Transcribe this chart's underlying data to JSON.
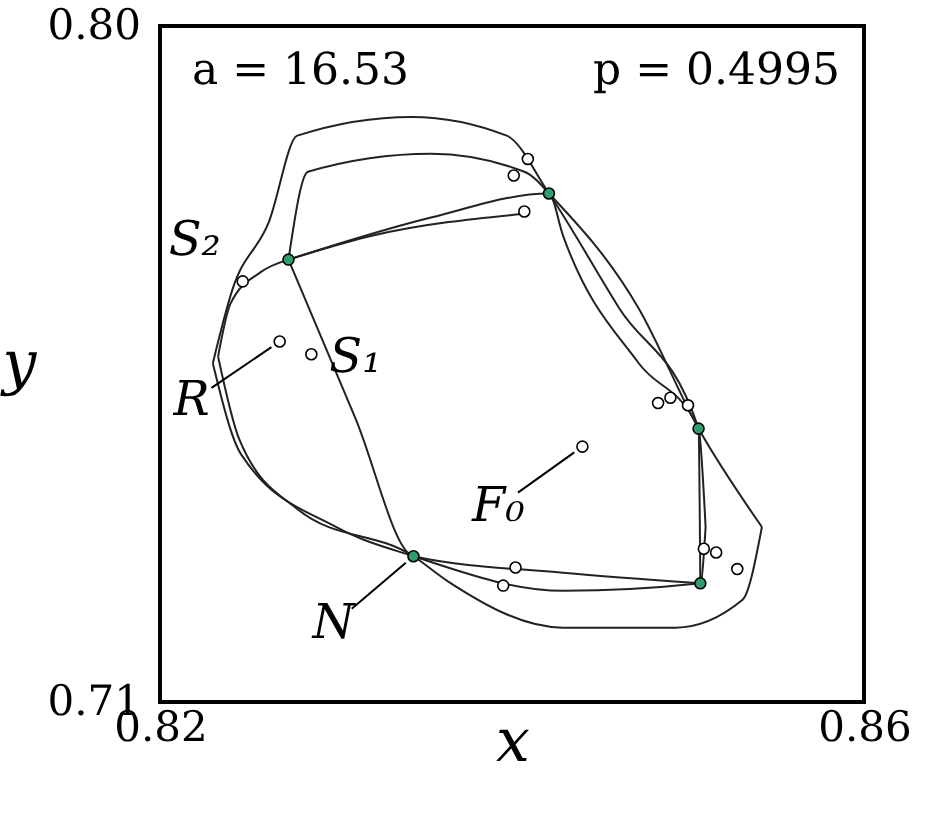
{
  "chart_data": {
    "type": "line",
    "xlabel": "x",
    "ylabel": "y",
    "xlim": [
      0.82,
      0.86
    ],
    "ylim": [
      0.71,
      0.8
    ],
    "xticks": [
      0.82,
      0.86
    ],
    "yticks": [
      0.71,
      {
        "value": 0.8,
        "label": "0.80"
      }
    ],
    "grid": false,
    "marker": "none",
    "line_style": "solid",
    "series": [
      {
        "color": "#222222",
        "x": [
          0.823,
          0.8241,
          0.8262,
          0.8278,
          0.8343,
          0.8397,
          0.8421,
          0.8461,
          0.8506,
          0.851
        ],
        "values": [
          0.7551,
          0.7648,
          0.774,
          0.7854,
          0.7879,
          0.7854,
          0.7777,
          0.7624,
          0.7464,
          0.7333
        ]
      },
      {
        "color": "#222222",
        "x": [
          0.823,
          0.8246,
          0.83,
          0.8344,
          0.8429,
          0.8507,
          0.851
        ],
        "values": [
          0.7551,
          0.743,
          0.7333,
          0.7294,
          0.7248,
          0.7258,
          0.7333
        ]
      },
      {
        "color": "#222222",
        "x": [
          0.8273,
          0.8284,
          0.8354,
          0.8407,
          0.8421
        ],
        "values": [
          0.7689,
          0.7806,
          0.783,
          0.7806,
          0.7777
        ]
      },
      {
        "color": "#222222",
        "x": [
          0.8273,
          0.8321,
          0.8407
        ],
        "values": [
          0.7689,
          0.7721,
          0.775
        ]
      },
      {
        "color": "#222222",
        "x": [
          0.8273,
          0.8311,
          0.8344,
          0.8429,
          0.8507
        ],
        "values": [
          0.7689,
          0.7478,
          0.7294,
          0.7272,
          0.7258
        ]
      },
      {
        "color": "#222222",
        "x": [
          0.8273,
          0.8354,
          0.8421,
          0.8429,
          0.8472,
          0.8506,
          0.8507
        ],
        "values": [
          0.7689,
          0.7745,
          0.7777,
          0.7721,
          0.7551,
          0.7464,
          0.7258
        ]
      },
      {
        "color": "#222222",
        "x": [
          0.8421,
          0.8472,
          0.8506,
          0.8542
        ],
        "values": [
          0.7777,
          0.7624,
          0.7464,
          0.7333
        ]
      },
      {
        "color": "#222222",
        "x": [
          0.8233,
          0.8245,
          0.8278,
          0.8344,
          0.8364,
          0.8429,
          0.8493,
          0.8531,
          0.8542
        ],
        "values": [
          0.756,
          0.745,
          0.7357,
          0.7294,
          0.726,
          0.7199,
          0.7199,
          0.7236,
          0.7333
        ]
      },
      {
        "color": "#222222",
        "x": [
          0.8233,
          0.824,
          0.8257,
          0.8273
        ],
        "values": [
          0.756,
          0.763,
          0.7672,
          0.7689
        ]
      },
      {
        "type": "scatter",
        "marker": "circle",
        "color": "#ffffff",
        "x": [
          0.8268,
          0.8286,
          0.8247,
          0.844,
          0.8409,
          0.8401,
          0.8407,
          0.8483,
          0.849,
          0.85,
          0.8509,
          0.8516,
          0.8528,
          0.8402,
          0.8395
        ],
        "values": [
          0.758,
          0.7563,
          0.766,
          0.744,
          0.7823,
          0.7801,
          0.7753,
          0.7498,
          0.7505,
          0.7495,
          0.7304,
          0.7299,
          0.7277,
          0.7279,
          0.7255
        ]
      },
      {
        "type": "scatter",
        "marker": "circle",
        "color": "#2e9e6e",
        "x": [
          0.8273,
          0.8421,
          0.8506,
          0.8507,
          0.8344
        ],
        "values": [
          0.7689,
          0.7777,
          0.7464,
          0.7258,
          0.7294
        ]
      }
    ],
    "annotations": [
      "a = 16.53",
      "p = 0.4995",
      {
        "text": "S₂",
        "x": 0.8247,
        "y": 0.766
      },
      {
        "text": "S₁",
        "x": 0.8286,
        "y": 0.7563
      },
      {
        "text": "R",
        "x": 0.8268,
        "y": 0.758
      },
      {
        "text": "N",
        "x": 0.8344,
        "y": 0.7294
      },
      {
        "text": "F₀",
        "x": 0.844,
        "y": 0.744
      }
    ]
  }
}
